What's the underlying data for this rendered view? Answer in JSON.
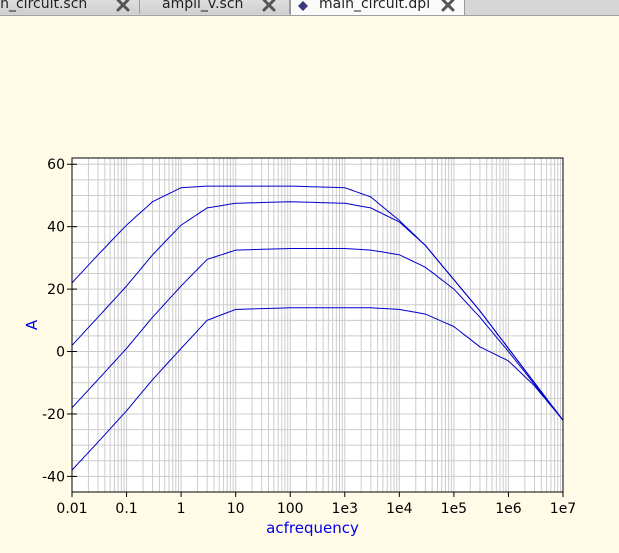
{
  "tabs": [
    {
      "label": "main_circuit.sch",
      "active": false
    },
    {
      "label": "ampli_v.sch",
      "active": false
    },
    {
      "label": "main_circuit.dpl",
      "active": true
    }
  ],
  "icons": {
    "tab_close": "close-x-icon",
    "document": "diagram-document-icon"
  },
  "colors": {
    "canvas_bg": "#fffbe6",
    "trace": "#0000cc",
    "axis_label": "#0000e6",
    "grid": "#cccccc",
    "plot_bg": "#ffffff"
  },
  "chart_data": {
    "type": "line",
    "title": "",
    "xlabel": "acfrequency",
    "ylabel": "A",
    "x_scale": "log",
    "xlim": [
      0.01,
      10000000
    ],
    "ylim": [
      -45,
      62
    ],
    "grid": true,
    "legend": "none",
    "x_ticks": [
      {
        "value": 0.01,
        "label": "0.01"
      },
      {
        "value": 0.1,
        "label": "0.1"
      },
      {
        "value": 1,
        "label": "1"
      },
      {
        "value": 10,
        "label": "10"
      },
      {
        "value": 100,
        "label": "100"
      },
      {
        "value": 1000,
        "label": "1e3"
      },
      {
        "value": 10000,
        "label": "1e4"
      },
      {
        "value": 100000,
        "label": "1e5"
      },
      {
        "value": 1000000,
        "label": "1e6"
      },
      {
        "value": 10000000,
        "label": "1e7"
      }
    ],
    "y_ticks": [
      {
        "value": 60,
        "label": "60"
      },
      {
        "value": 40,
        "label": "40"
      },
      {
        "value": 20,
        "label": "20"
      },
      {
        "value": 0,
        "label": "0"
      },
      {
        "value": -20,
        "label": "-20"
      },
      {
        "value": -40,
        "label": "-40"
      }
    ],
    "series": [
      {
        "x": [
          0.01,
          0.03,
          0.1,
          0.3,
          1,
          3,
          10,
          100,
          1000,
          3000,
          10000,
          30000,
          100000,
          300000,
          1000000,
          3000000,
          10000000
        ],
        "values": [
          22,
          31,
          40.5,
          48,
          52.5,
          53,
          53,
          53,
          52.5,
          49.5,
          42,
          34,
          23,
          13,
          1,
          -10,
          -22
        ]
      },
      {
        "x": [
          0.01,
          0.03,
          0.1,
          0.3,
          1,
          3,
          10,
          100,
          1000,
          3000,
          10000,
          30000,
          100000,
          300000,
          1000000,
          3000000,
          10000000
        ],
        "values": [
          2,
          11,
          21,
          31,
          40.5,
          46,
          47.5,
          48,
          47.5,
          46,
          41.5,
          34,
          23,
          13,
          1,
          -10,
          -22
        ]
      },
      {
        "x": [
          0.01,
          0.03,
          0.1,
          0.3,
          1,
          3,
          10,
          100,
          1000,
          3000,
          10000,
          30000,
          100000,
          300000,
          1000000,
          3000000,
          10000000
        ],
        "values": [
          -18,
          -9,
          1,
          11,
          21,
          29.5,
          32.5,
          33,
          33,
          32.5,
          31,
          27,
          20,
          11,
          0,
          -10.5,
          -22
        ]
      },
      {
        "x": [
          0.01,
          0.03,
          0.1,
          0.3,
          1,
          3,
          10,
          100,
          1000,
          3000,
          10000,
          30000,
          100000,
          300000,
          1000000,
          3000000,
          10000000
        ],
        "values": [
          -38,
          -29,
          -19,
          -9,
          1,
          10,
          13.5,
          14,
          14,
          14,
          13.5,
          12,
          8,
          1.5,
          -3,
          -11,
          -22
        ]
      }
    ]
  }
}
